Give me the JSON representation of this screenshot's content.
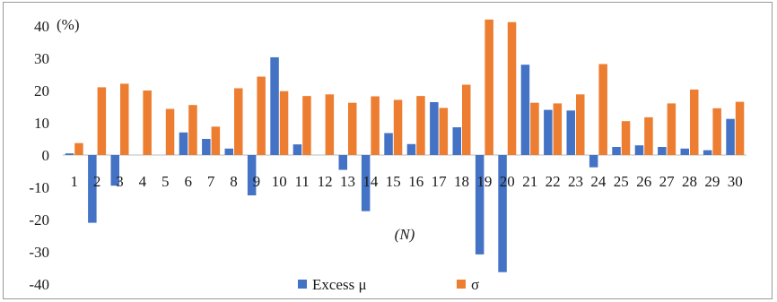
{
  "chart_data": {
    "type": "bar",
    "ylabel": "(%)",
    "xlabel": "(N)",
    "ylim": [
      -40,
      40
    ],
    "yticks": [
      "40",
      "30",
      "20",
      "10",
      "0",
      "-10",
      "-20",
      "-30",
      "-40"
    ],
    "categories": [
      "1",
      "2",
      "3",
      "4",
      "5",
      "6",
      "7",
      "8",
      "9",
      "10",
      "11",
      "12",
      "13",
      "14",
      "15",
      "16",
      "17",
      "18",
      "19",
      "20",
      "21",
      "22",
      "23",
      "24",
      "25",
      "26",
      "27",
      "28",
      "29",
      "30"
    ],
    "series": [
      {
        "name": "Excess μ",
        "color": "#4472C4",
        "values": [
          0.5,
          -21,
          -9.5,
          0,
          0,
          7,
          5,
          2,
          -12.5,
          30.3,
          3.3,
          0,
          -4.6,
          -17.4,
          6.8,
          3.4,
          16.4,
          8.6,
          -30.8,
          -36.3,
          28,
          14,
          13.8,
          -3.8,
          2.5,
          3,
          2.5,
          2,
          1.5,
          11.2
        ]
      },
      {
        "name": "σ",
        "color": "#ED7D31",
        "values": [
          3.7,
          21,
          22.1,
          20,
          14.3,
          15.5,
          8.8,
          20.7,
          24.3,
          19.8,
          18.3,
          18.8,
          16.2,
          18.2,
          17.1,
          18.3,
          14.6,
          21.8,
          42,
          41.2,
          16.2,
          16,
          18.8,
          28.2,
          10.5,
          11.7,
          16,
          20.3,
          14.5,
          16.5
        ]
      }
    ],
    "grid": false,
    "legend": "bottom"
  }
}
